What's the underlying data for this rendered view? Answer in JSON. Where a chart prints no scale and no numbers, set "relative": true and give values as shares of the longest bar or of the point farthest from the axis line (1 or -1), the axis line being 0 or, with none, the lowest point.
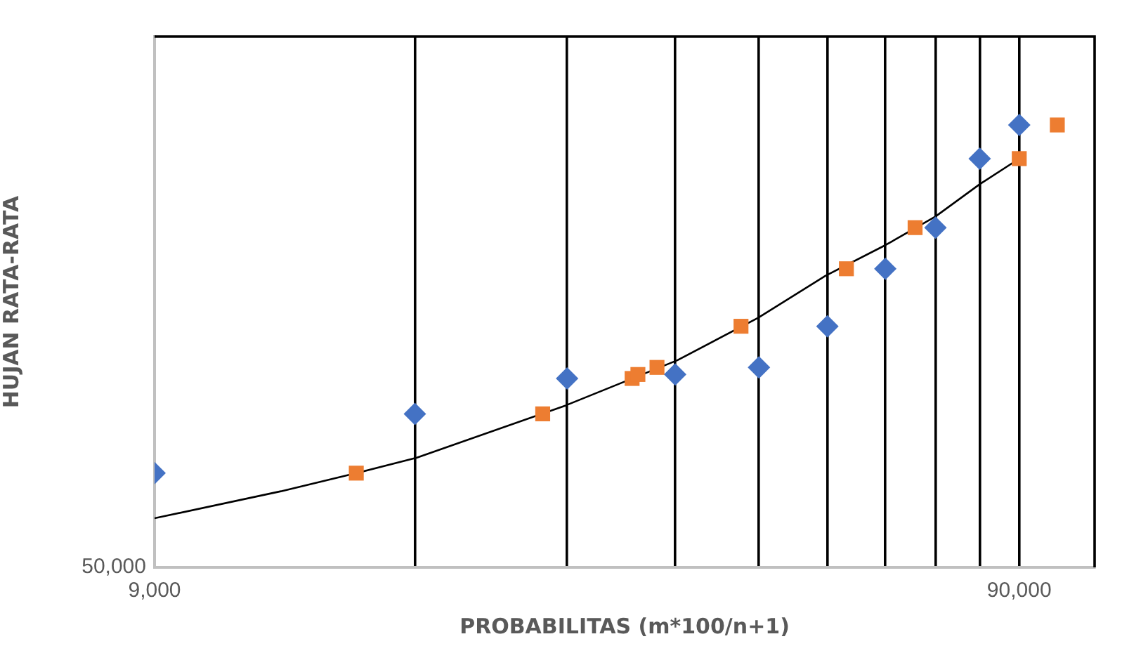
{
  "chart_data": {
    "type": "scatter",
    "xlabel": "PROBABILITAS (m*100/n+1)",
    "ylabel": "HUJAN RATA-RATA",
    "annotations": [
      "50,000"
    ],
    "log": "x",
    "grid": "x",
    "legend": false,
    "relative": true,
    "xlim": [
      9000,
      110000
    ],
    "xticks": [
      {
        "value": 9000,
        "label": "9,000"
      },
      {
        "value": 18000,
        "label": null
      },
      {
        "value": 27000,
        "label": null
      },
      {
        "value": 36000,
        "label": null
      },
      {
        "value": 45000,
        "label": null
      },
      {
        "value": 54000,
        "label": null
      },
      {
        "value": 63000,
        "label": null
      },
      {
        "value": 72000,
        "label": null
      },
      {
        "value": 81000,
        "label": null
      },
      {
        "value": 90000,
        "label": "90,000"
      }
    ],
    "series": [
      {
        "color": "#4472c4",
        "marker": "diamond",
        "x": [
          9000,
          18000,
          27000,
          36000,
          45000,
          54000,
          63000,
          72000,
          81000,
          90000
        ],
        "values": [
          0.213,
          0.347,
          0.427,
          0.436,
          0.452,
          0.545,
          0.675,
          0.768,
          0.924,
          1
        ]
      },
      {
        "color": "#ed7d31",
        "marker": "square",
        "x": [
          15400,
          25300,
          32100,
          32600,
          34300,
          42900,
          56800,
          68200,
          90000,
          99600
        ],
        "values": [
          0.213,
          0.347,
          0.427,
          0.436,
          0.452,
          0.545,
          0.675,
          0.768,
          0.924,
          1
        ]
      },
      {
        "type": "line",
        "color": "#000000",
        "marker": "none",
        "line_style": "solid",
        "x": [
          9000,
          12600,
          15400,
          18100,
          26900,
          36200,
          44900,
          53700,
          63100,
          72000,
          81000,
          90500
        ],
        "values": [
          0.111,
          0.172,
          0.213,
          0.248,
          0.366,
          0.468,
          0.564,
          0.659,
          0.729,
          0.793,
          0.866,
          0.927
        ]
      }
    ]
  }
}
